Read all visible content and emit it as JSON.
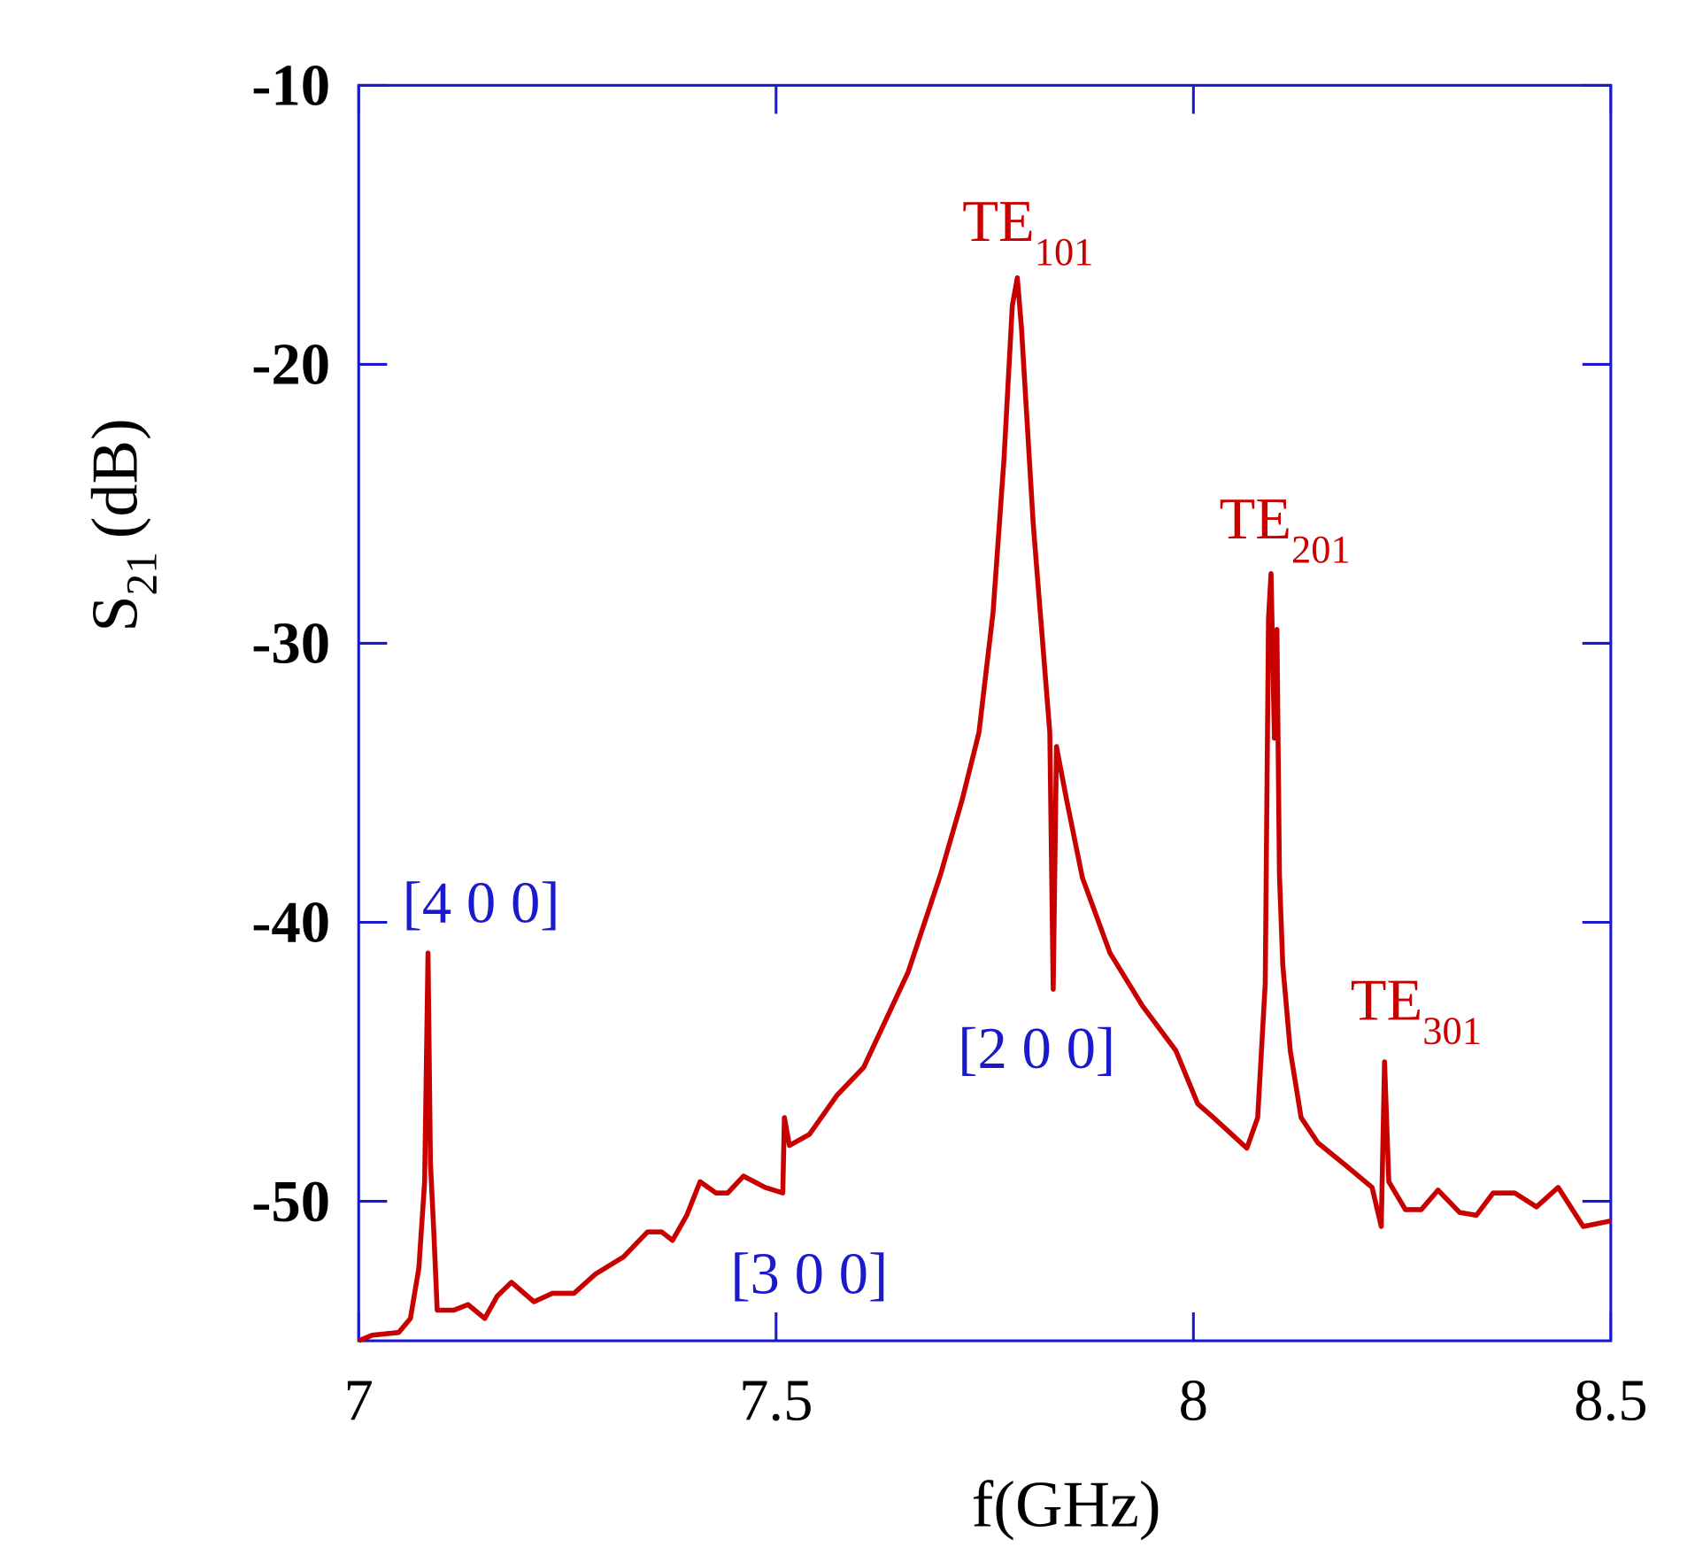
{
  "chart_data": {
    "type": "line",
    "xlabel": "f(GHz)",
    "ylabel": {
      "main": "S",
      "sub": "21",
      "rest": "(dB)"
    },
    "color": "#c80000",
    "axis_color": "#1a1acc",
    "xlim": [
      7,
      8.5
    ],
    "xticks": [
      7,
      7.5,
      8,
      8.5
    ],
    "ylim": [
      -55,
      -10
    ],
    "yticks": [
      -10,
      -20,
      -30,
      -40,
      -50
    ],
    "x": [
      7,
      7.016,
      7.048,
      7.062,
      7.072,
      7.079,
      7.083,
      7.086,
      7.09,
      7.094,
      7.114,
      7.131,
      7.151,
      7.166,
      7.183,
      7.21,
      7.232,
      7.258,
      7.284,
      7.317,
      7.346,
      7.363,
      7.376,
      7.393,
      7.409,
      7.428,
      7.442,
      7.461,
      7.487,
      7.508,
      7.51,
      7.516,
      7.54,
      7.573,
      7.605,
      7.658,
      7.697,
      7.723,
      7.743,
      7.76,
      7.773,
      7.783,
      7.789,
      7.794,
      7.808,
      7.828,
      7.832,
      7.836,
      7.848,
      7.867,
      7.9,
      7.939,
      7.979,
      8.005,
      8.024,
      8.064,
      8.077,
      8.086,
      8.09,
      8.093,
      8.097,
      8.1,
      8.103,
      8.107,
      8.116,
      8.129,
      8.149,
      8.182,
      8.214,
      8.225,
      8.229,
      8.234,
      8.254,
      8.273,
      8.293,
      8.319,
      8.339,
      8.359,
      8.385,
      8.411,
      8.437,
      8.467,
      8.5
    ],
    "values": [
      -55,
      -54.8,
      -54.7,
      -54.2,
      -52.4,
      -49.3,
      -41.1,
      -48.6,
      -51.1,
      -53.9,
      -53.9,
      -53.7,
      -54.2,
      -53.4,
      -52.9,
      -53.6,
      -53.3,
      -53.3,
      -52.6,
      -52,
      -51.1,
      -51.1,
      -51.4,
      -50.5,
      -49.3,
      -49.7,
      -49.7,
      -49.1,
      -49.5,
      -49.7,
      -47,
      -48,
      -47.6,
      -46.2,
      -45.2,
      -41.8,
      -38.3,
      -35.6,
      -33.2,
      -28.9,
      -23.4,
      -17.9,
      -16.9,
      -18.7,
      -25.7,
      -33.2,
      -42.4,
      -33.7,
      -35.6,
      -38.4,
      -41.1,
      -43,
      -44.6,
      -46.5,
      -47,
      -48.1,
      -47,
      -42.2,
      -29.1,
      -27.5,
      -33.4,
      -29.5,
      -38.3,
      -41.5,
      -44.6,
      -47,
      -47.9,
      -48.7,
      -49.5,
      -50.9,
      -45,
      -49.3,
      -50.3,
      -50.3,
      -49.6,
      -50.4,
      -50.5,
      -49.7,
      -49.7,
      -50.2,
      -49.5,
      -50.9,
      -50.7
    ],
    "annotations": [
      {
        "text": "[4 0 0]",
        "color": "#1a1acc"
      },
      {
        "text": "TE",
        "sub": "101",
        "color": "#c80000"
      },
      {
        "text": "TE",
        "sub": "201",
        "color": "#c80000"
      },
      {
        "text": "[2 0 0]",
        "color": "#1a1acc"
      },
      {
        "text": "[3 0 0]",
        "color": "#1a1acc"
      },
      {
        "text": "TE",
        "sub": "301",
        "color": "#c80000"
      }
    ]
  }
}
